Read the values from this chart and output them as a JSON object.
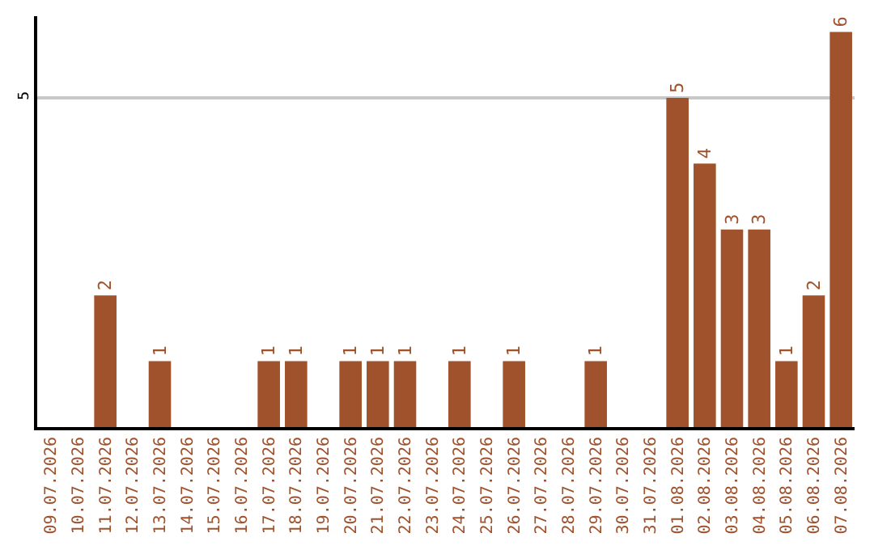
{
  "chart_data": {
    "type": "bar",
    "categories": [
      "09.07.2026",
      "10.07.2026",
      "11.07.2026",
      "12.07.2026",
      "13.07.2026",
      "14.07.2026",
      "15.07.2026",
      "16.07.2026",
      "17.07.2026",
      "18.07.2026",
      "19.07.2026",
      "20.07.2026",
      "21.07.2026",
      "22.07.2026",
      "23.07.2026",
      "24.07.2026",
      "25.07.2026",
      "26.07.2026",
      "27.07.2026",
      "28.07.2026",
      "29.07.2026",
      "30.07.2026",
      "31.07.2026",
      "01.08.2026",
      "02.08.2026",
      "03.08.2026",
      "04.08.2026",
      "05.08.2026",
      "06.08.2026",
      "07.08.2026"
    ],
    "values": [
      0,
      0,
      2,
      0,
      1,
      0,
      0,
      0,
      1,
      1,
      0,
      1,
      1,
      1,
      0,
      1,
      0,
      1,
      0,
      0,
      1,
      0,
      0,
      5,
      4,
      3,
      3,
      1,
      2,
      6
    ],
    "value_labels": [
      null,
      null,
      "2",
      null,
      "1",
      null,
      null,
      null,
      "1",
      "1",
      null,
      "1",
      "1",
      "1",
      null,
      "1",
      null,
      "1",
      null,
      null,
      "1",
      null,
      null,
      "5",
      "4",
      "3",
      "3",
      "1",
      "2",
      "6"
    ],
    "color": "#a0522d",
    "ylim": [
      0,
      6.24
    ],
    "yticks": [
      5
    ],
    "grid": "y"
  }
}
